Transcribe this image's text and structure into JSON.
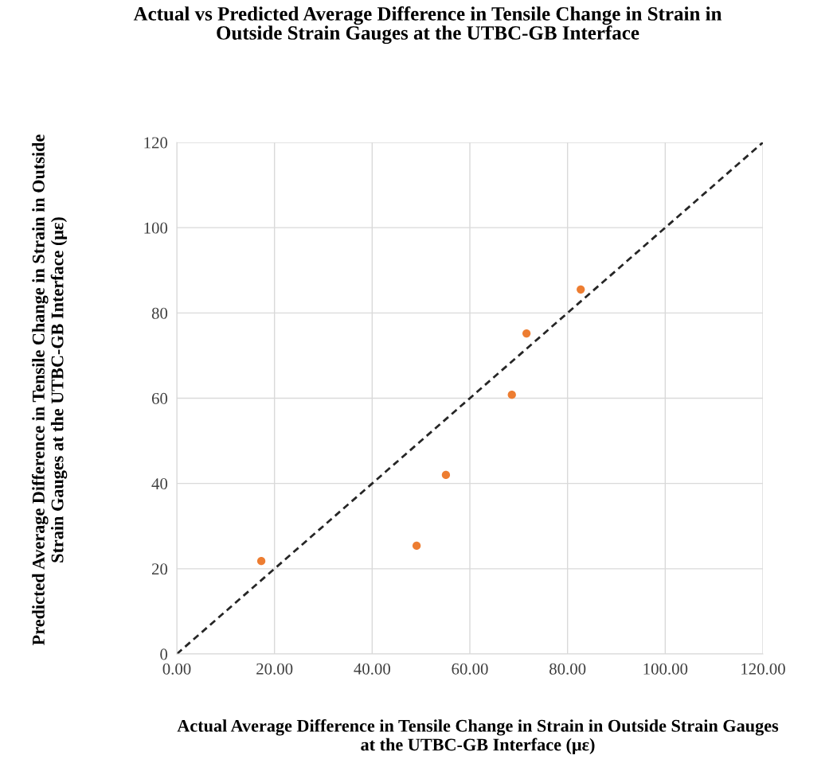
{
  "chart_data": {
    "type": "scatter",
    "title": "Actual vs Predicted Average Difference in Tensile Change in Strain in Outside Strain Gauges at the UTBC-GB Interface",
    "xlabel": "Actual Average Difference in Tensile Change in Strain in Outside Strain Gauges at the UTBC-GB Interface (με)",
    "ylabel": "Predicted Average Difference in Tensile Change in Strain in Outside Strain Gauges at the UTBC-GB Interface (με)",
    "series": [
      {
        "color": "#ed7d31",
        "marker": "circle",
        "x": [
          17.3,
          49.1,
          55.1,
          68.6,
          71.6,
          82.7
        ],
        "values": [
          21.8,
          25.4,
          42.0,
          60.8,
          75.2,
          85.5
        ]
      },
      {
        "type": "line",
        "color": "#262626",
        "line_style": "dashed",
        "marker": "none",
        "x": [
          0,
          120
        ],
        "values": [
          0,
          120
        ]
      }
    ],
    "xlim": [
      0,
      120
    ],
    "ylim": [
      0,
      120
    ],
    "xticks": [
      {
        "value": 0,
        "label": "0.00"
      },
      {
        "value": 20,
        "label": "20.00"
      },
      {
        "value": 40,
        "label": "40.00"
      },
      {
        "value": 60,
        "label": "60.00"
      },
      {
        "value": 80,
        "label": "80.00"
      },
      {
        "value": 100,
        "label": "100.00"
      },
      {
        "value": 120,
        "label": "120.00"
      }
    ],
    "yticks": [
      0,
      20,
      40,
      60,
      80,
      100,
      120
    ],
    "grid": true,
    "legend": false
  }
}
